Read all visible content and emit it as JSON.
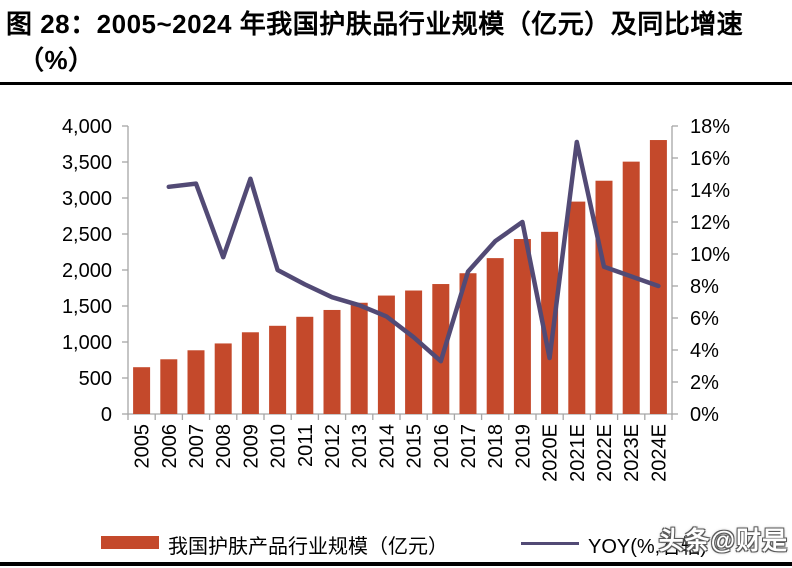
{
  "figure": {
    "title_line1": "图 28：2005~2024 年我国护肤品行业规模（亿元）及同比增速",
    "title_line2": "（%）"
  },
  "watermark": "头条@财是",
  "legend": {
    "bar_label": "我国护肤产品行业规模（亿元）",
    "line_label": "YOY(%,右轴)"
  },
  "colors": {
    "bar": "#C4492B",
    "line": "#524A75",
    "axis": "#A6A6A6",
    "text": "#000000"
  },
  "chart_data": {
    "type": "combo",
    "title": "2005~2024 年我国护肤品行业规模（亿元）及同比增速（%）",
    "categories": [
      "2005",
      "2006",
      "2007",
      "2008",
      "2009",
      "2010",
      "2011",
      "2012",
      "2013",
      "2014",
      "2015",
      "2016",
      "2017",
      "2018",
      "2019",
      "2020E",
      "2021E",
      "2022E",
      "2023E",
      "2024E"
    ],
    "series": [
      {
        "name": "我国护肤产品行业规模（亿元）",
        "type": "bar",
        "axis": "left",
        "values": [
          650,
          760,
          885,
          980,
          1135,
          1225,
          1350,
          1445,
          1545,
          1645,
          1715,
          1805,
          1955,
          2165,
          2430,
          2530,
          2950,
          3240,
          3505,
          3805
        ]
      },
      {
        "name": "YOY(%,右轴)",
        "type": "line",
        "axis": "right",
        "values": [
          null,
          14.2,
          14.4,
          9.8,
          14.7,
          9.0,
          8.1,
          7.3,
          6.8,
          6.1,
          4.8,
          3.3,
          8.9,
          10.8,
          12.0,
          3.5,
          17.0,
          9.2,
          8.6,
          8.0
        ]
      }
    ],
    "left_axis": {
      "min": 0,
      "max": 4000,
      "step": 500,
      "tick_labels": [
        "0",
        "500",
        "1,000",
        "1,500",
        "2,000",
        "2,500",
        "3,000",
        "3,500",
        "4,000"
      ]
    },
    "right_axis": {
      "min": 0,
      "max": 18,
      "step": 2,
      "tick_labels": [
        "0%",
        "2%",
        "4%",
        "6%",
        "8%",
        "10%",
        "12%",
        "14%",
        "16%",
        "18%"
      ]
    },
    "grid": false,
    "legend_position": "bottom"
  }
}
